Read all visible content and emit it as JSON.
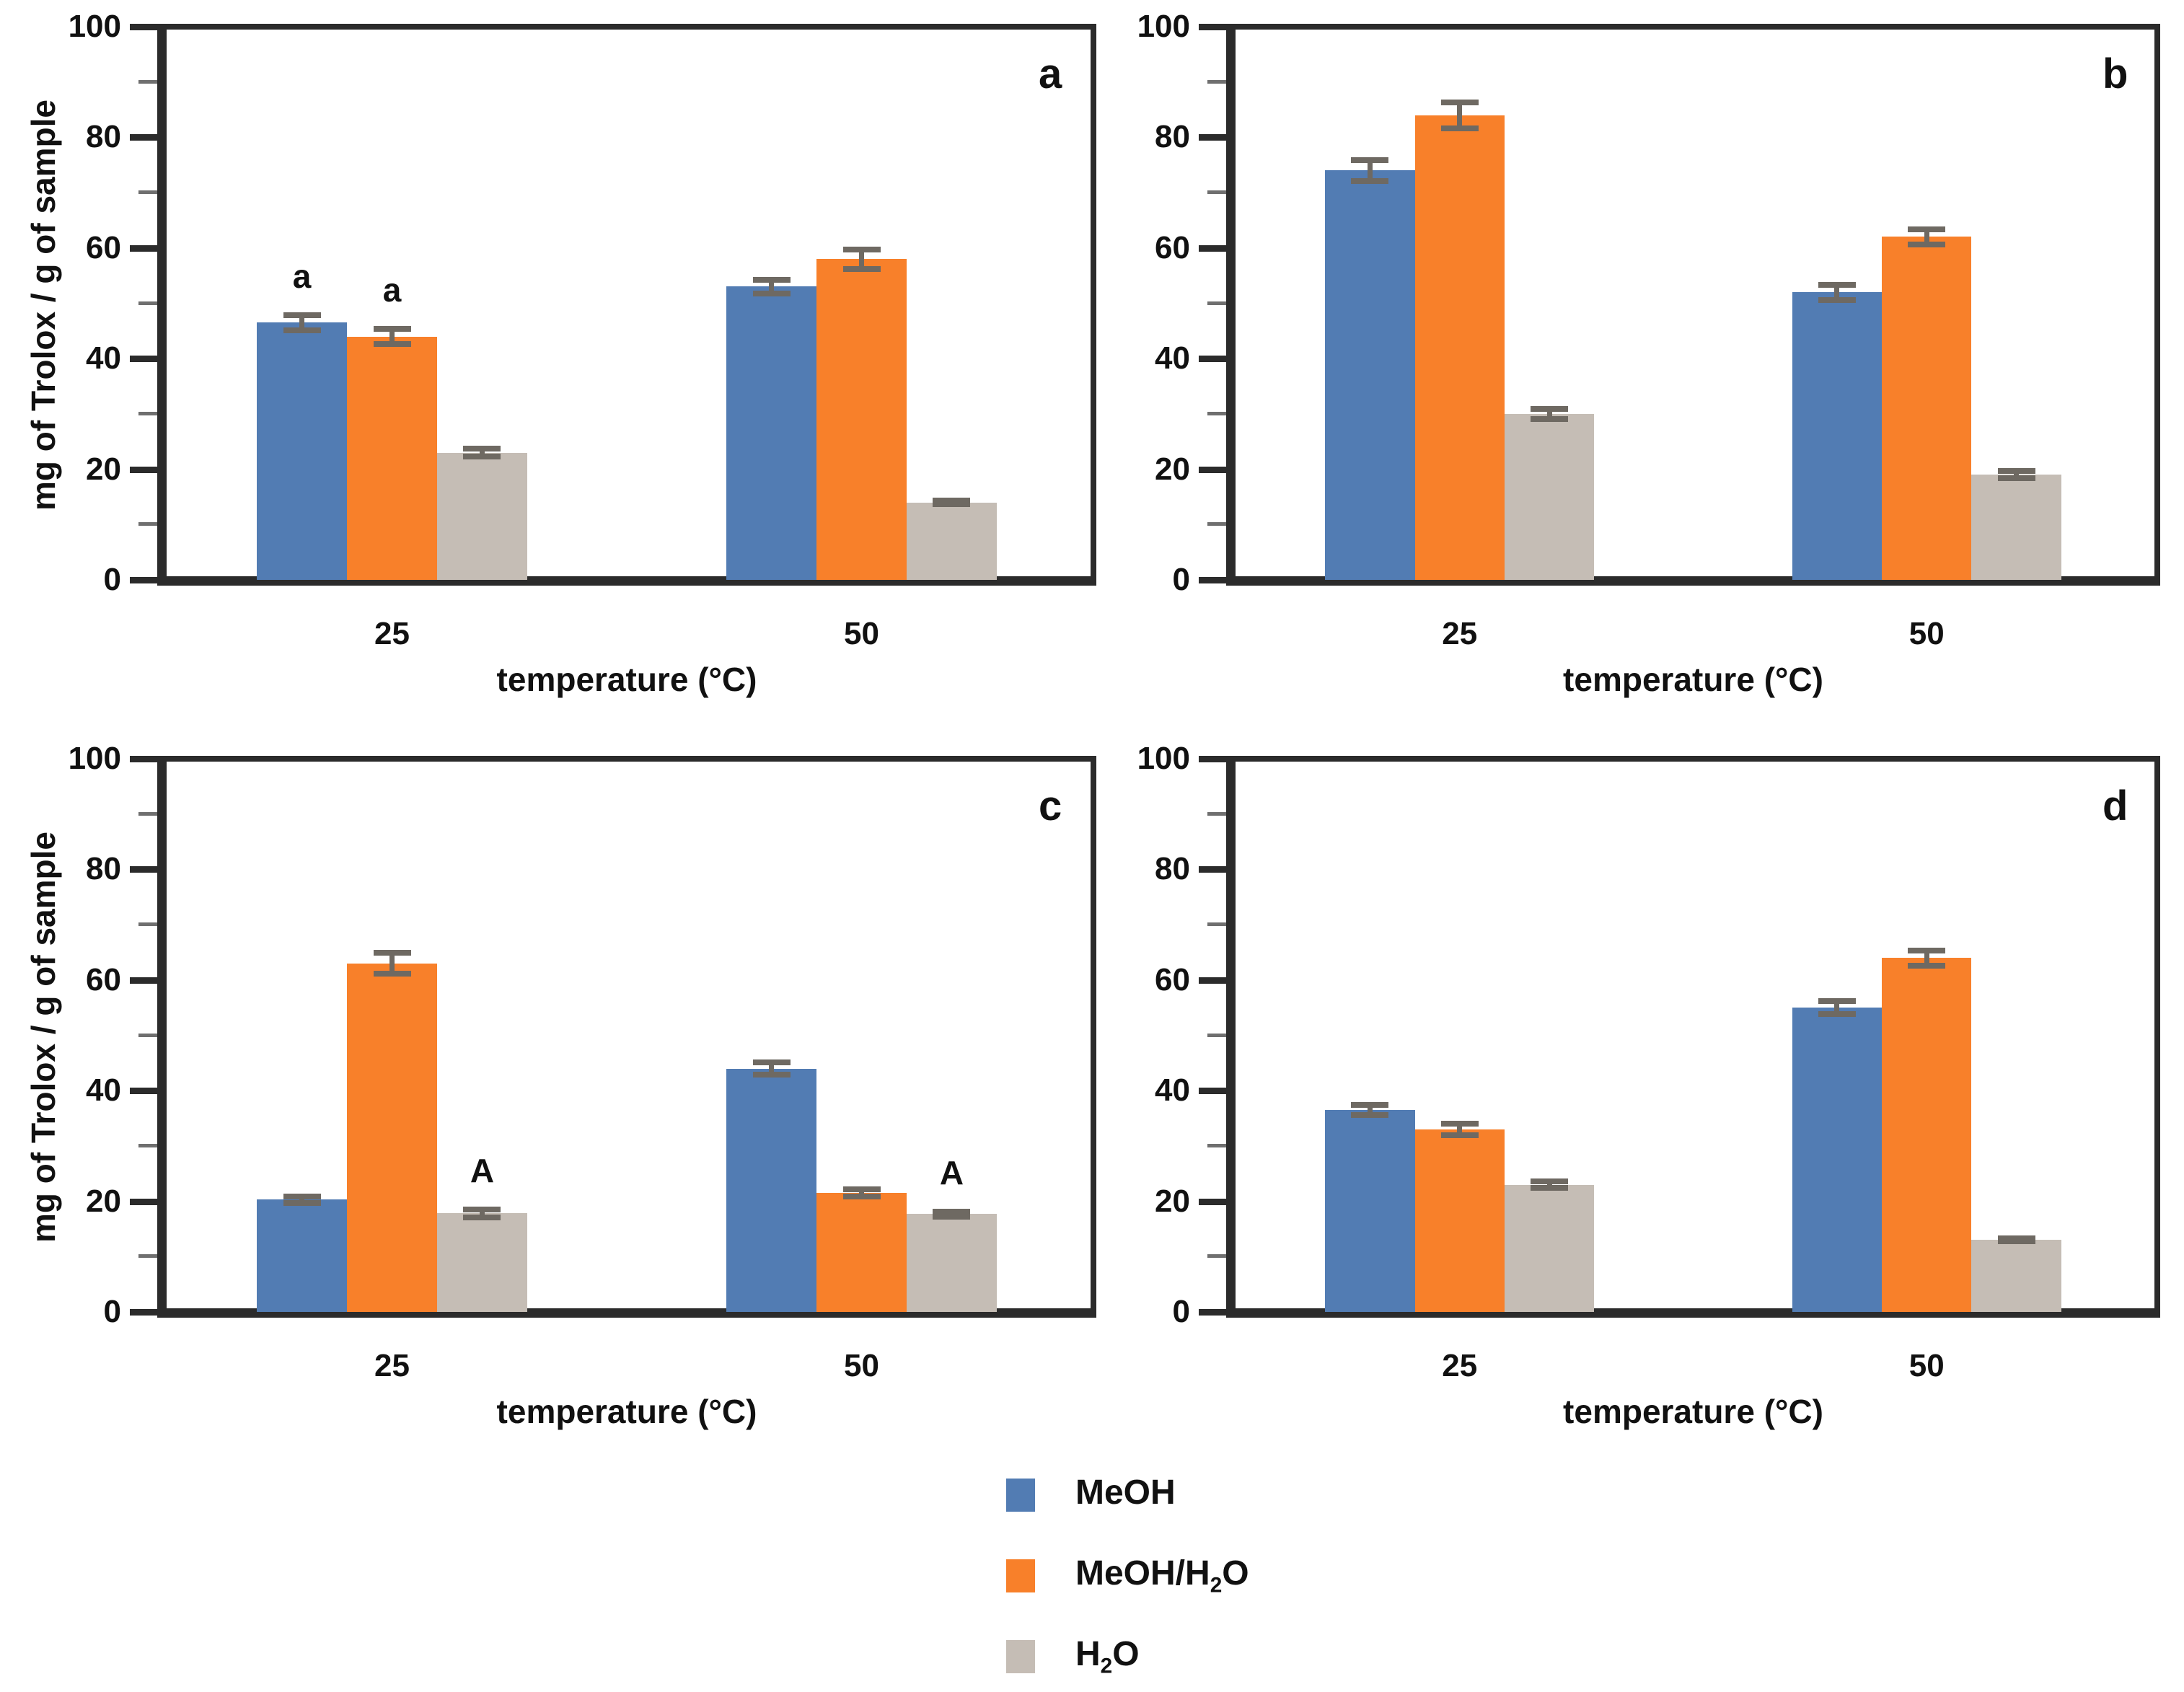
{
  "colors": {
    "bar_blue": "#527cb3",
    "bar_orange": "#f8802a",
    "bar_gray": "#c5bdb5",
    "error_bar": "#6e6962",
    "axis": "#2b2b2b",
    "text": "#111111",
    "background": "#ffffff"
  },
  "legend": {
    "items": [
      {
        "key": "meoh",
        "name": "MeOH",
        "color": "#527cb3",
        "pre": "MeOH",
        "sub": "",
        "post": ""
      },
      {
        "key": "meoh-h2o",
        "name": "MeOH/H₂O",
        "color": "#f8802a",
        "pre": "MeOH/H",
        "sub": "2",
        "post": "O"
      },
      {
        "key": "h2o",
        "name": "H₂O",
        "color": "#c5bdb5",
        "pre": "H",
        "sub": "2",
        "post": "O"
      }
    ]
  },
  "chart_data": [
    {
      "type": "bar",
      "panel_label": "a",
      "xlabel": "temperature (°C)",
      "ylabel": "mg of Trolox / g of sample",
      "ylim": [
        0,
        100
      ],
      "yticks": [
        0,
        20,
        40,
        60,
        80,
        100
      ],
      "minor_tick_step": 10,
      "grid": false,
      "legend_position": "figure-bottom-center",
      "categories": [
        "25",
        "50"
      ],
      "series": [
        {
          "name": "MeOH",
          "values": [
            46.5,
            53
          ],
          "errors": [
            1.5,
            1.4
          ]
        },
        {
          "name": "MeOH/H₂O",
          "values": [
            44,
            58
          ],
          "errors": [
            1.5,
            1.9
          ]
        },
        {
          "name": "H₂O",
          "values": [
            23,
            14
          ],
          "errors": [
            0.8,
            0.5
          ]
        }
      ],
      "annotations": [
        {
          "series": 0,
          "category": 0,
          "text": "a"
        },
        {
          "series": 1,
          "category": 0,
          "text": "a"
        }
      ]
    },
    {
      "type": "bar",
      "panel_label": "b",
      "xlabel": "temperature (°C)",
      "ylabel": "",
      "ylim": [
        0,
        100
      ],
      "yticks": [
        0,
        20,
        40,
        60,
        80,
        100
      ],
      "minor_tick_step": 10,
      "grid": false,
      "categories": [
        "25",
        "50"
      ],
      "series": [
        {
          "name": "MeOH",
          "values": [
            74,
            52
          ],
          "errors": [
            2,
            1.5
          ]
        },
        {
          "name": "MeOH/H₂O",
          "values": [
            84,
            62
          ],
          "errors": [
            2.5,
            1.5
          ]
        },
        {
          "name": "H₂O",
          "values": [
            30,
            19
          ],
          "errors": [
            1,
            0.8
          ]
        }
      ],
      "annotations": []
    },
    {
      "type": "bar",
      "panel_label": "c",
      "xlabel": "temperature (°C)",
      "ylabel": "mg of Trolox / g of sample",
      "ylim": [
        0,
        100
      ],
      "yticks": [
        0,
        20,
        40,
        60,
        80,
        100
      ],
      "minor_tick_step": 10,
      "grid": false,
      "categories": [
        "25",
        "50"
      ],
      "series": [
        {
          "name": "MeOH",
          "values": [
            20.3,
            44
          ],
          "errors": [
            0.7,
            1.3
          ]
        },
        {
          "name": "MeOH/H₂O",
          "values": [
            63,
            21.5
          ],
          "errors": [
            2,
            0.8
          ]
        },
        {
          "name": "H₂O",
          "values": [
            17.8,
            17.7
          ],
          "errors": [
            0.8,
            0.6
          ]
        }
      ],
      "annotations": [
        {
          "series": 2,
          "category": 0,
          "text": "A"
        },
        {
          "series": 2,
          "category": 1,
          "text": "A"
        }
      ]
    },
    {
      "type": "bar",
      "panel_label": "d",
      "xlabel": "temperature (°C)",
      "ylabel": "",
      "ylim": [
        0,
        100
      ],
      "yticks": [
        0,
        20,
        40,
        60,
        80,
        100
      ],
      "minor_tick_step": 10,
      "grid": false,
      "categories": [
        "25",
        "50"
      ],
      "series": [
        {
          "name": "MeOH",
          "values": [
            36.5,
            55
          ],
          "errors": [
            1,
            1.3
          ]
        },
        {
          "name": "MeOH/H₂O",
          "values": [
            33,
            64
          ],
          "errors": [
            1.2,
            1.5
          ]
        },
        {
          "name": "H₂O",
          "values": [
            23,
            13
          ],
          "errors": [
            0.7,
            0.4
          ]
        }
      ],
      "annotations": []
    }
  ]
}
